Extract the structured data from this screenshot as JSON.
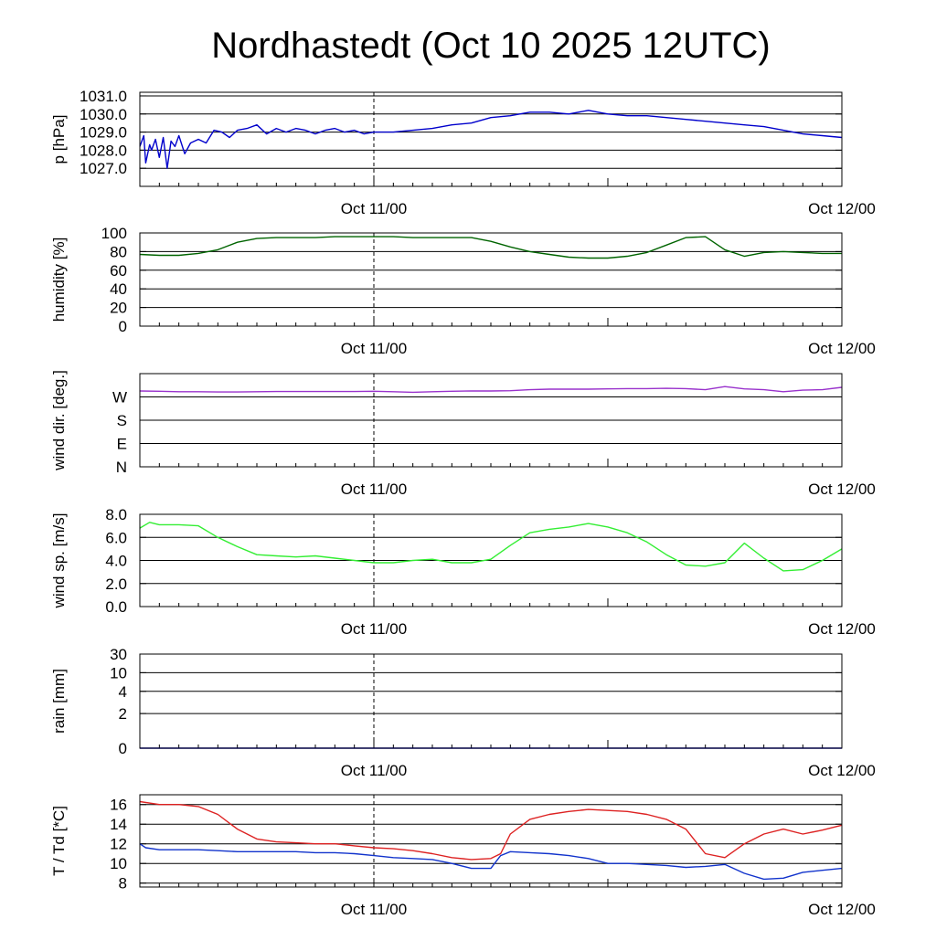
{
  "title": "Nordhastedt (Oct 10 2025 12UTC)",
  "colors": {
    "pressure": "#0000cc",
    "humidity": "#006400",
    "wind_dir": "#9932cc",
    "wind_speed": "#33ee33",
    "rain": "#0000cc",
    "temperature": "#dd2222",
    "dewpoint": "#1133cc"
  },
  "chart_data": [
    {
      "type": "line",
      "id": "pressure",
      "ylabel": "p [hPa]",
      "x_range_hours": [
        0,
        36
      ],
      "x_ticks": [
        {
          "h": 12,
          "label": "Oct 11/00"
        },
        {
          "h": 36,
          "label": "Oct 12/00"
        }
      ],
      "ylim": [
        1026.0,
        1031.2
      ],
      "yticks": [
        1027.0,
        1028.0,
        1029.0,
        1030.0,
        1031.0
      ],
      "ytick_labels": [
        "1027.0",
        "1028.0",
        "1029.0",
        "1030.0",
        "1031.0"
      ],
      "series": [
        {
          "key": "pressure",
          "x": [
            0,
            0.2,
            0.3,
            0.5,
            0.6,
            0.8,
            1.0,
            1.2,
            1.4,
            1.6,
            1.8,
            2.0,
            2.3,
            2.6,
            3.0,
            3.4,
            3.8,
            4.2,
            4.6,
            5.0,
            5.5,
            6.0,
            6.5,
            7.0,
            7.5,
            8.0,
            8.5,
            9.0,
            9.5,
            10.0,
            10.5,
            11.0,
            11.5,
            12.0,
            13.0,
            14.0,
            15.0,
            16.0,
            17.0,
            18.0,
            19.0,
            20.0,
            21.0,
            22.0,
            23.0,
            24.0,
            25.0,
            26.0,
            27.0,
            28.0,
            29.0,
            30.0,
            31.0,
            32.0,
            33.0,
            34.0,
            35.0,
            36.0
          ],
          "y": [
            1028.2,
            1028.8,
            1027.3,
            1028.3,
            1028.0,
            1028.6,
            1027.6,
            1028.7,
            1027.0,
            1028.5,
            1028.2,
            1028.8,
            1027.8,
            1028.4,
            1028.6,
            1028.4,
            1029.1,
            1029.0,
            1028.7,
            1029.1,
            1029.2,
            1029.4,
            1028.9,
            1029.2,
            1029.0,
            1029.2,
            1029.1,
            1028.9,
            1029.1,
            1029.2,
            1029.0,
            1029.1,
            1028.9,
            1029.0,
            1029.0,
            1029.1,
            1029.2,
            1029.4,
            1029.5,
            1029.8,
            1029.9,
            1030.1,
            1030.1,
            1030.0,
            1030.2,
            1030.0,
            1029.9,
            1029.9,
            1029.8,
            1029.7,
            1029.6,
            1029.5,
            1029.4,
            1029.3,
            1029.1,
            1028.9,
            1028.8,
            1028.7
          ]
        }
      ]
    },
    {
      "type": "line",
      "id": "humidity",
      "ylabel": "humidity [%]",
      "x_range_hours": [
        0,
        36
      ],
      "x_ticks": [
        {
          "h": 12,
          "label": "Oct 11/00"
        },
        {
          "h": 36,
          "label": "Oct 12/00"
        }
      ],
      "ylim": [
        0,
        100
      ],
      "yticks": [
        0,
        20,
        40,
        60,
        80,
        100
      ],
      "ytick_labels": [
        "0",
        "20",
        "40",
        "60",
        "80",
        "100"
      ],
      "series": [
        {
          "key": "humidity",
          "x": [
            0,
            1,
            2,
            3,
            4,
            5,
            6,
            7,
            8,
            9,
            10,
            11,
            12,
            13,
            14,
            15,
            16,
            17,
            18,
            19,
            20,
            21,
            22,
            23,
            24,
            25,
            26,
            27,
            28,
            29,
            30,
            31,
            32,
            33,
            34,
            35,
            36
          ],
          "y": [
            77,
            76,
            76,
            78,
            82,
            90,
            94,
            95,
            95,
            95,
            96,
            96,
            96,
            96,
            95,
            95,
            95,
            95,
            91,
            85,
            80,
            77,
            74,
            73,
            73,
            75,
            79,
            87,
            95,
            96,
            82,
            75,
            79,
            80,
            79,
            78,
            78
          ]
        }
      ]
    },
    {
      "type": "line",
      "id": "wind_dir",
      "ylabel": "wind dir. [deg.]",
      "x_range_hours": [
        0,
        36
      ],
      "x_ticks": [
        {
          "h": 12,
          "label": "Oct 11/00"
        },
        {
          "h": 36,
          "label": "Oct 12/00"
        }
      ],
      "ylim": [
        0,
        360
      ],
      "yticks": [
        0,
        90,
        180,
        270
      ],
      "ytick_labels": [
        "N",
        "E",
        "S",
        "W"
      ],
      "series": [
        {
          "key": "wind_dir",
          "x": [
            0,
            1,
            2,
            3,
            4,
            5,
            6,
            7,
            8,
            9,
            10,
            11,
            12,
            13,
            14,
            15,
            16,
            17,
            18,
            19,
            20,
            21,
            22,
            23,
            24,
            25,
            26,
            27,
            28,
            29,
            30,
            31,
            32,
            33,
            34,
            35,
            36
          ],
          "y": [
            293,
            292,
            290,
            290,
            289,
            289,
            290,
            291,
            291,
            291,
            291,
            291,
            292,
            290,
            288,
            290,
            292,
            293,
            293,
            294,
            298,
            300,
            300,
            300,
            301,
            302,
            302,
            303,
            302,
            298,
            310,
            301,
            298,
            290,
            296,
            298,
            307
          ]
        }
      ]
    },
    {
      "type": "line",
      "id": "wind_speed",
      "ylabel": "wind sp. [m/s]",
      "x_range_hours": [
        0,
        36
      ],
      "x_ticks": [
        {
          "h": 12,
          "label": "Oct 11/00"
        },
        {
          "h": 36,
          "label": "Oct 12/00"
        }
      ],
      "ylim": [
        0,
        8
      ],
      "yticks": [
        0,
        2,
        4,
        6,
        8
      ],
      "ytick_labels": [
        "0.0",
        "2.0",
        "4.0",
        "6.0",
        "8.0"
      ],
      "series": [
        {
          "key": "wind_speed",
          "x": [
            0,
            0.5,
            1,
            2,
            3,
            4,
            5,
            6,
            7,
            8,
            9,
            10,
            11,
            12,
            13,
            14,
            15,
            16,
            17,
            18,
            19,
            20,
            21,
            22,
            23,
            24,
            25,
            26,
            27,
            28,
            29,
            30,
            31,
            32,
            33,
            34,
            35,
            36
          ],
          "y": [
            6.8,
            7.3,
            7.1,
            7.1,
            7.0,
            6.0,
            5.2,
            4.5,
            4.4,
            4.3,
            4.4,
            4.2,
            4.0,
            3.8,
            3.8,
            4.0,
            4.1,
            3.8,
            3.8,
            4.1,
            5.3,
            6.4,
            6.7,
            6.9,
            7.2,
            6.9,
            6.4,
            5.6,
            4.5,
            3.6,
            3.5,
            3.8,
            5.5,
            4.2,
            3.1,
            3.2,
            4.0,
            5.0
          ]
        }
      ]
    },
    {
      "type": "line",
      "id": "rain",
      "ylabel": "rain [mm]",
      "x_range_hours": [
        0,
        36
      ],
      "x_ticks": [
        {
          "h": 12,
          "label": "Oct 11/00"
        },
        {
          "h": 36,
          "label": "Oct 12/00"
        }
      ],
      "ylim": [
        0,
        30
      ],
      "yticks": [
        0,
        2,
        4,
        10,
        30
      ],
      "ytick_labels": [
        "0",
        "2",
        "4",
        "10",
        "30"
      ],
      "series": [
        {
          "key": "rain",
          "x": [
            0,
            36
          ],
          "y": [
            0,
            0
          ]
        }
      ]
    },
    {
      "type": "line",
      "id": "temperature",
      "ylabel": "T / Td [*C]",
      "x_range_hours": [
        0,
        36
      ],
      "x_ticks": [
        {
          "h": 12,
          "label": "Oct 11/00"
        },
        {
          "h": 36,
          "label": "Oct 12/00"
        }
      ],
      "ylim": [
        7.6,
        17.0
      ],
      "yticks": [
        8,
        10,
        12,
        14,
        16
      ],
      "ytick_labels": [
        "8",
        "10",
        "12",
        "14",
        "16"
      ],
      "series": [
        {
          "key": "temperature",
          "x": [
            0,
            1,
            2,
            3,
            4,
            5,
            6,
            7,
            8,
            9,
            10,
            11,
            12,
            13,
            14,
            15,
            16,
            17,
            18,
            18.5,
            19,
            20,
            21,
            22,
            23,
            24,
            25,
            26,
            27,
            28,
            29,
            30,
            31,
            32,
            33,
            34,
            35,
            36
          ],
          "y": [
            16.3,
            16.0,
            16.0,
            15.8,
            15.0,
            13.5,
            12.5,
            12.2,
            12.1,
            12.0,
            12.0,
            11.8,
            11.6,
            11.5,
            11.3,
            11.0,
            10.6,
            10.4,
            10.5,
            11.0,
            13.0,
            14.5,
            15.0,
            15.3,
            15.5,
            15.4,
            15.3,
            15.0,
            14.5,
            13.5,
            11.0,
            10.6,
            12.0,
            13.0,
            13.5,
            13.0,
            13.4,
            13.9
          ]
        },
        {
          "key": "dewpoint",
          "x": [
            0,
            0.3,
            1,
            2,
            3,
            4,
            5,
            6,
            7,
            8,
            9,
            10,
            11,
            12,
            13,
            14,
            15,
            16,
            17,
            18,
            18.5,
            19,
            20,
            21,
            22,
            23,
            24,
            25,
            26,
            27,
            28,
            29,
            30,
            31,
            32,
            33,
            34,
            35,
            36
          ],
          "y": [
            12.0,
            11.6,
            11.4,
            11.4,
            11.4,
            11.3,
            11.2,
            11.2,
            11.2,
            11.2,
            11.1,
            11.1,
            11.0,
            10.8,
            10.6,
            10.5,
            10.4,
            10.0,
            9.5,
            9.5,
            10.8,
            11.2,
            11.1,
            11.0,
            10.8,
            10.5,
            10.0,
            10.0,
            9.9,
            9.8,
            9.6,
            9.7,
            9.9,
            9.0,
            8.4,
            8.5,
            9.1,
            9.3,
            9.5
          ]
        }
      ]
    }
  ]
}
